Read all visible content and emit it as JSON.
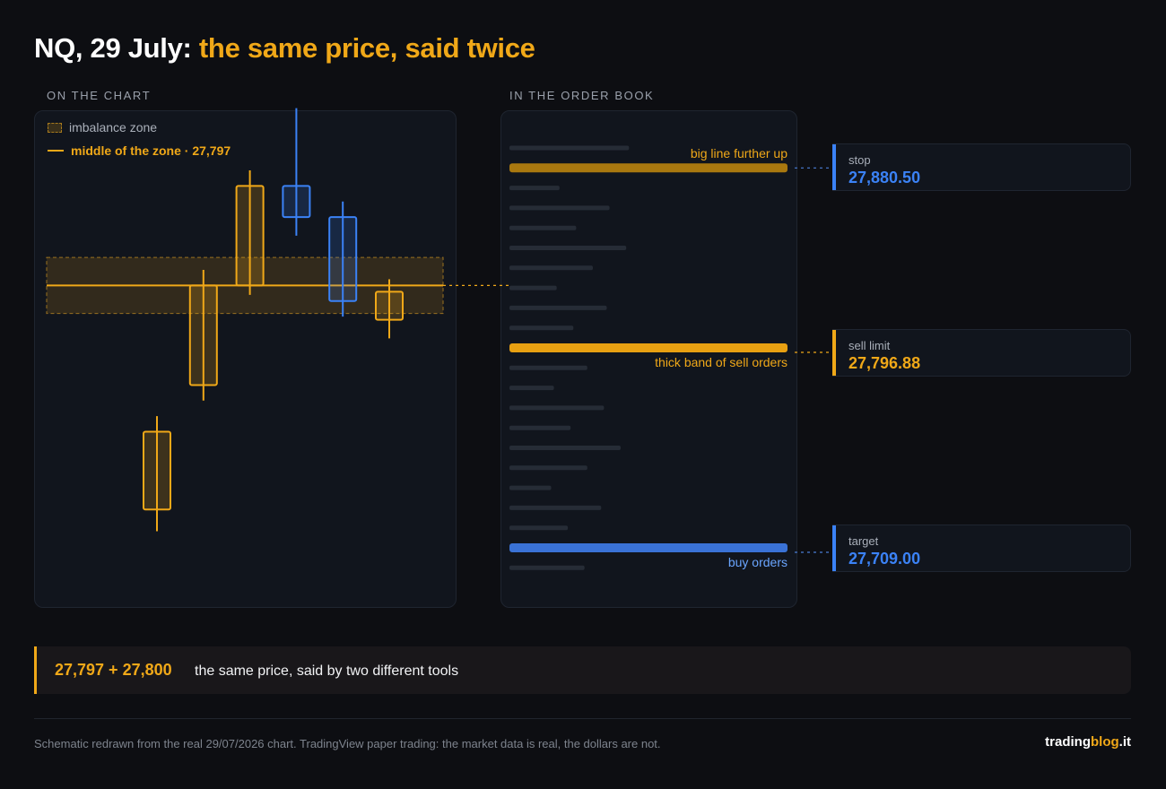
{
  "title": {
    "main": "NQ, 29 July:",
    "accent": "the same price, said twice"
  },
  "sections": {
    "chart": "ON THE CHART",
    "book": "IN THE ORDER BOOK"
  },
  "chart_data": {
    "type": "candlestick",
    "legend": {
      "zone_label": "imbalance zone",
      "midline_label": "middle of the zone · 27,797"
    },
    "zone": {
      "low": 27788,
      "high": 27806,
      "mid": 27797
    },
    "ylim": [
      27700,
      27890
    ],
    "candles": [
      {
        "open": 27725,
        "close": 27750,
        "high": 27755,
        "low": 27718,
        "color": "#f0a818"
      },
      {
        "open": 27765,
        "close": 27797,
        "high": 27802,
        "low": 27760,
        "color": "#f0a818"
      },
      {
        "open": 27797,
        "close": 27829,
        "high": 27834,
        "low": 27794,
        "color": "#f0a818"
      },
      {
        "open": 27829,
        "close": 27819,
        "high": 27854,
        "low": 27813,
        "color": "#3b82f6"
      },
      {
        "open": 27819,
        "close": 27792,
        "high": 27824,
        "low": 27787,
        "color": "#3b82f6"
      },
      {
        "open": 27795,
        "close": 27786,
        "high": 27799,
        "low": 27780,
        "color": "#f0a818"
      }
    ],
    "colors": {
      "accent": "#f0a818",
      "blue": "#3b82f6"
    }
  },
  "order_book": {
    "rows": [
      {
        "size": 0.43,
        "kind": "plain"
      },
      {
        "size": 1.0,
        "kind": "big"
      },
      {
        "size": 0.18,
        "kind": "plain"
      },
      {
        "size": 0.36,
        "kind": "plain"
      },
      {
        "size": 0.24,
        "kind": "plain"
      },
      {
        "size": 0.42,
        "kind": "plain"
      },
      {
        "size": 0.3,
        "kind": "plain"
      },
      {
        "size": 0.17,
        "kind": "plain"
      },
      {
        "size": 0.35,
        "kind": "plain"
      },
      {
        "size": 0.23,
        "kind": "plain"
      },
      {
        "size": 1.0,
        "kind": "sell"
      },
      {
        "size": 0.28,
        "kind": "plain"
      },
      {
        "size": 0.16,
        "kind": "plain"
      },
      {
        "size": 0.34,
        "kind": "plain"
      },
      {
        "size": 0.22,
        "kind": "plain"
      },
      {
        "size": 0.4,
        "kind": "plain"
      },
      {
        "size": 0.28,
        "kind": "plain"
      },
      {
        "size": 0.15,
        "kind": "plain"
      },
      {
        "size": 0.33,
        "kind": "plain"
      },
      {
        "size": 0.21,
        "kind": "plain"
      },
      {
        "size": 1.0,
        "kind": "buy"
      },
      {
        "size": 0.27,
        "kind": "plain"
      }
    ],
    "labels": {
      "big": "big line further up",
      "sell": "thick band of sell orders",
      "buy": "buy orders"
    },
    "colors": {
      "big": "#a9780f",
      "sell": "#e8a012",
      "buy": "#3a72d6",
      "plain": "#262c36"
    }
  },
  "orders": [
    {
      "type": "stop",
      "price": "27,880.50",
      "color": "#3b82f6"
    },
    {
      "type": "sell limit",
      "price": "27,796.88",
      "color": "#f0a818"
    },
    {
      "type": "target",
      "price": "27,709.00",
      "color": "#3b82f6"
    }
  ],
  "summary": {
    "key": "27,797 + 27,800",
    "text": "the same price, said by two different tools"
  },
  "footer": {
    "note": "Schematic redrawn from the real 29/07/2026 chart. TradingView paper trading: the market data is real, the dollars are not.",
    "brand_a": "trading",
    "brand_b": "blog",
    "brand_c": ".it"
  }
}
